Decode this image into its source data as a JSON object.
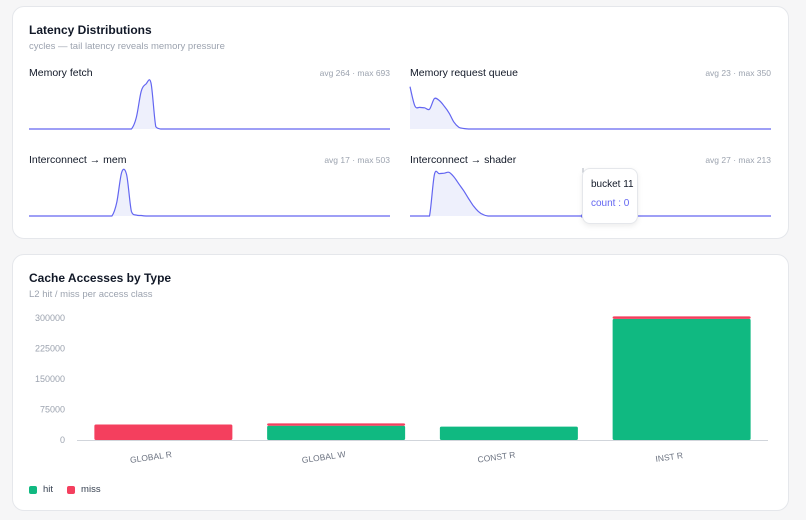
{
  "latency": {
    "title": "Latency Distributions",
    "subtitle": "cycles — tail latency reveals memory pressure",
    "colors": {
      "line": "#6366f1",
      "fill": "#eef0fc"
    },
    "panels": [
      {
        "title": "Memory fetch",
        "stats": "avg 264 · max 693",
        "curve": [
          0,
          0,
          0,
          0,
          0,
          0,
          0,
          0,
          0,
          0,
          0,
          0,
          0,
          0,
          0,
          0,
          0,
          0,
          0,
          0,
          0,
          0,
          0.25,
          0.82,
          0.98,
          1.0,
          0.05,
          0,
          0,
          0,
          0,
          0,
          0,
          0,
          0,
          0,
          0,
          0,
          0,
          0,
          0,
          0,
          0,
          0,
          0,
          0,
          0,
          0,
          0,
          0,
          0,
          0,
          0,
          0,
          0,
          0,
          0,
          0,
          0,
          0,
          0,
          0,
          0,
          0,
          0,
          0,
          0,
          0,
          0,
          0,
          0,
          0,
          0,
          0,
          0
        ]
      },
      {
        "title": "Memory request queue",
        "stats": "avg 23 · max 350",
        "curve": [
          0.92,
          0.5,
          0.47,
          0.46,
          0.43,
          0.66,
          0.62,
          0.5,
          0.35,
          0.15,
          0.04,
          0.01,
          0,
          0,
          0,
          0,
          0,
          0,
          0,
          0,
          0,
          0,
          0,
          0,
          0,
          0,
          0,
          0,
          0,
          0,
          0,
          0,
          0,
          0,
          0,
          0,
          0,
          0,
          0,
          0,
          0,
          0,
          0,
          0,
          0,
          0,
          0,
          0,
          0,
          0,
          0,
          0,
          0,
          0,
          0,
          0,
          0,
          0,
          0,
          0,
          0,
          0,
          0,
          0,
          0,
          0,
          0,
          0,
          0,
          0,
          0,
          0,
          0,
          0,
          0
        ]
      },
      {
        "title": "Interconnect → mem",
        "stats": "avg 17 · max 503",
        "curve": [
          0,
          0,
          0,
          0,
          0,
          0,
          0,
          0,
          0,
          0,
          0,
          0,
          0,
          0,
          0,
          0,
          0,
          0,
          0.3,
          0.95,
          0.9,
          0.1,
          0.02,
          0.01,
          0,
          0,
          0,
          0,
          0,
          0,
          0,
          0,
          0,
          0,
          0,
          0,
          0,
          0,
          0,
          0,
          0,
          0,
          0,
          0,
          0,
          0,
          0,
          0,
          0,
          0,
          0,
          0,
          0,
          0,
          0,
          0,
          0,
          0,
          0,
          0,
          0,
          0,
          0,
          0,
          0,
          0,
          0,
          0,
          0,
          0,
          0,
          0,
          0,
          0,
          0
        ]
      },
      {
        "title": "Interconnect → shader",
        "stats": "avg 27 · max 213",
        "curve": [
          0,
          0,
          0,
          0,
          0,
          0.9,
          0.92,
          0.93,
          0.95,
          0.85,
          0.7,
          0.55,
          0.38,
          0.22,
          0.1,
          0.03,
          0,
          0,
          0,
          0,
          0,
          0,
          0,
          0,
          0,
          0,
          0,
          0,
          0,
          0,
          0,
          0,
          0,
          0,
          0,
          0,
          0,
          0,
          0,
          0,
          0,
          0,
          0,
          0,
          0,
          0,
          0,
          0,
          0,
          0,
          0,
          0,
          0,
          0,
          0,
          0,
          0,
          0,
          0,
          0,
          0,
          0,
          0,
          0,
          0,
          0,
          0,
          0,
          0,
          0,
          0,
          0,
          0,
          0,
          0
        ]
      }
    ],
    "tooltip": {
      "title": "bucket 11",
      "line": "count : 0"
    }
  },
  "cache": {
    "title": "Cache Accesses by Type",
    "subtitle": "L2 hit / miss per access class",
    "legend": [
      {
        "label": "hit",
        "color": "#10b981"
      },
      {
        "label": "miss",
        "color": "#f43f5e"
      }
    ]
  },
  "chart_data": {
    "type": "bar",
    "stacked": true,
    "categories": [
      "GLOBAL R",
      "GLOBAL W",
      "CONST R",
      "INST R"
    ],
    "series": [
      {
        "name": "hit",
        "color": "#10b981",
        "values": [
          0,
          35000,
          33000,
          298000
        ]
      },
      {
        "name": "miss",
        "color": "#f43f5e",
        "values": [
          38000,
          6000,
          0,
          6000
        ]
      }
    ],
    "yticks": [
      0,
      75000,
      150000,
      225000,
      300000
    ],
    "ylim": [
      0,
      300000
    ],
    "grid": false,
    "legend_position": "bottom-left"
  }
}
